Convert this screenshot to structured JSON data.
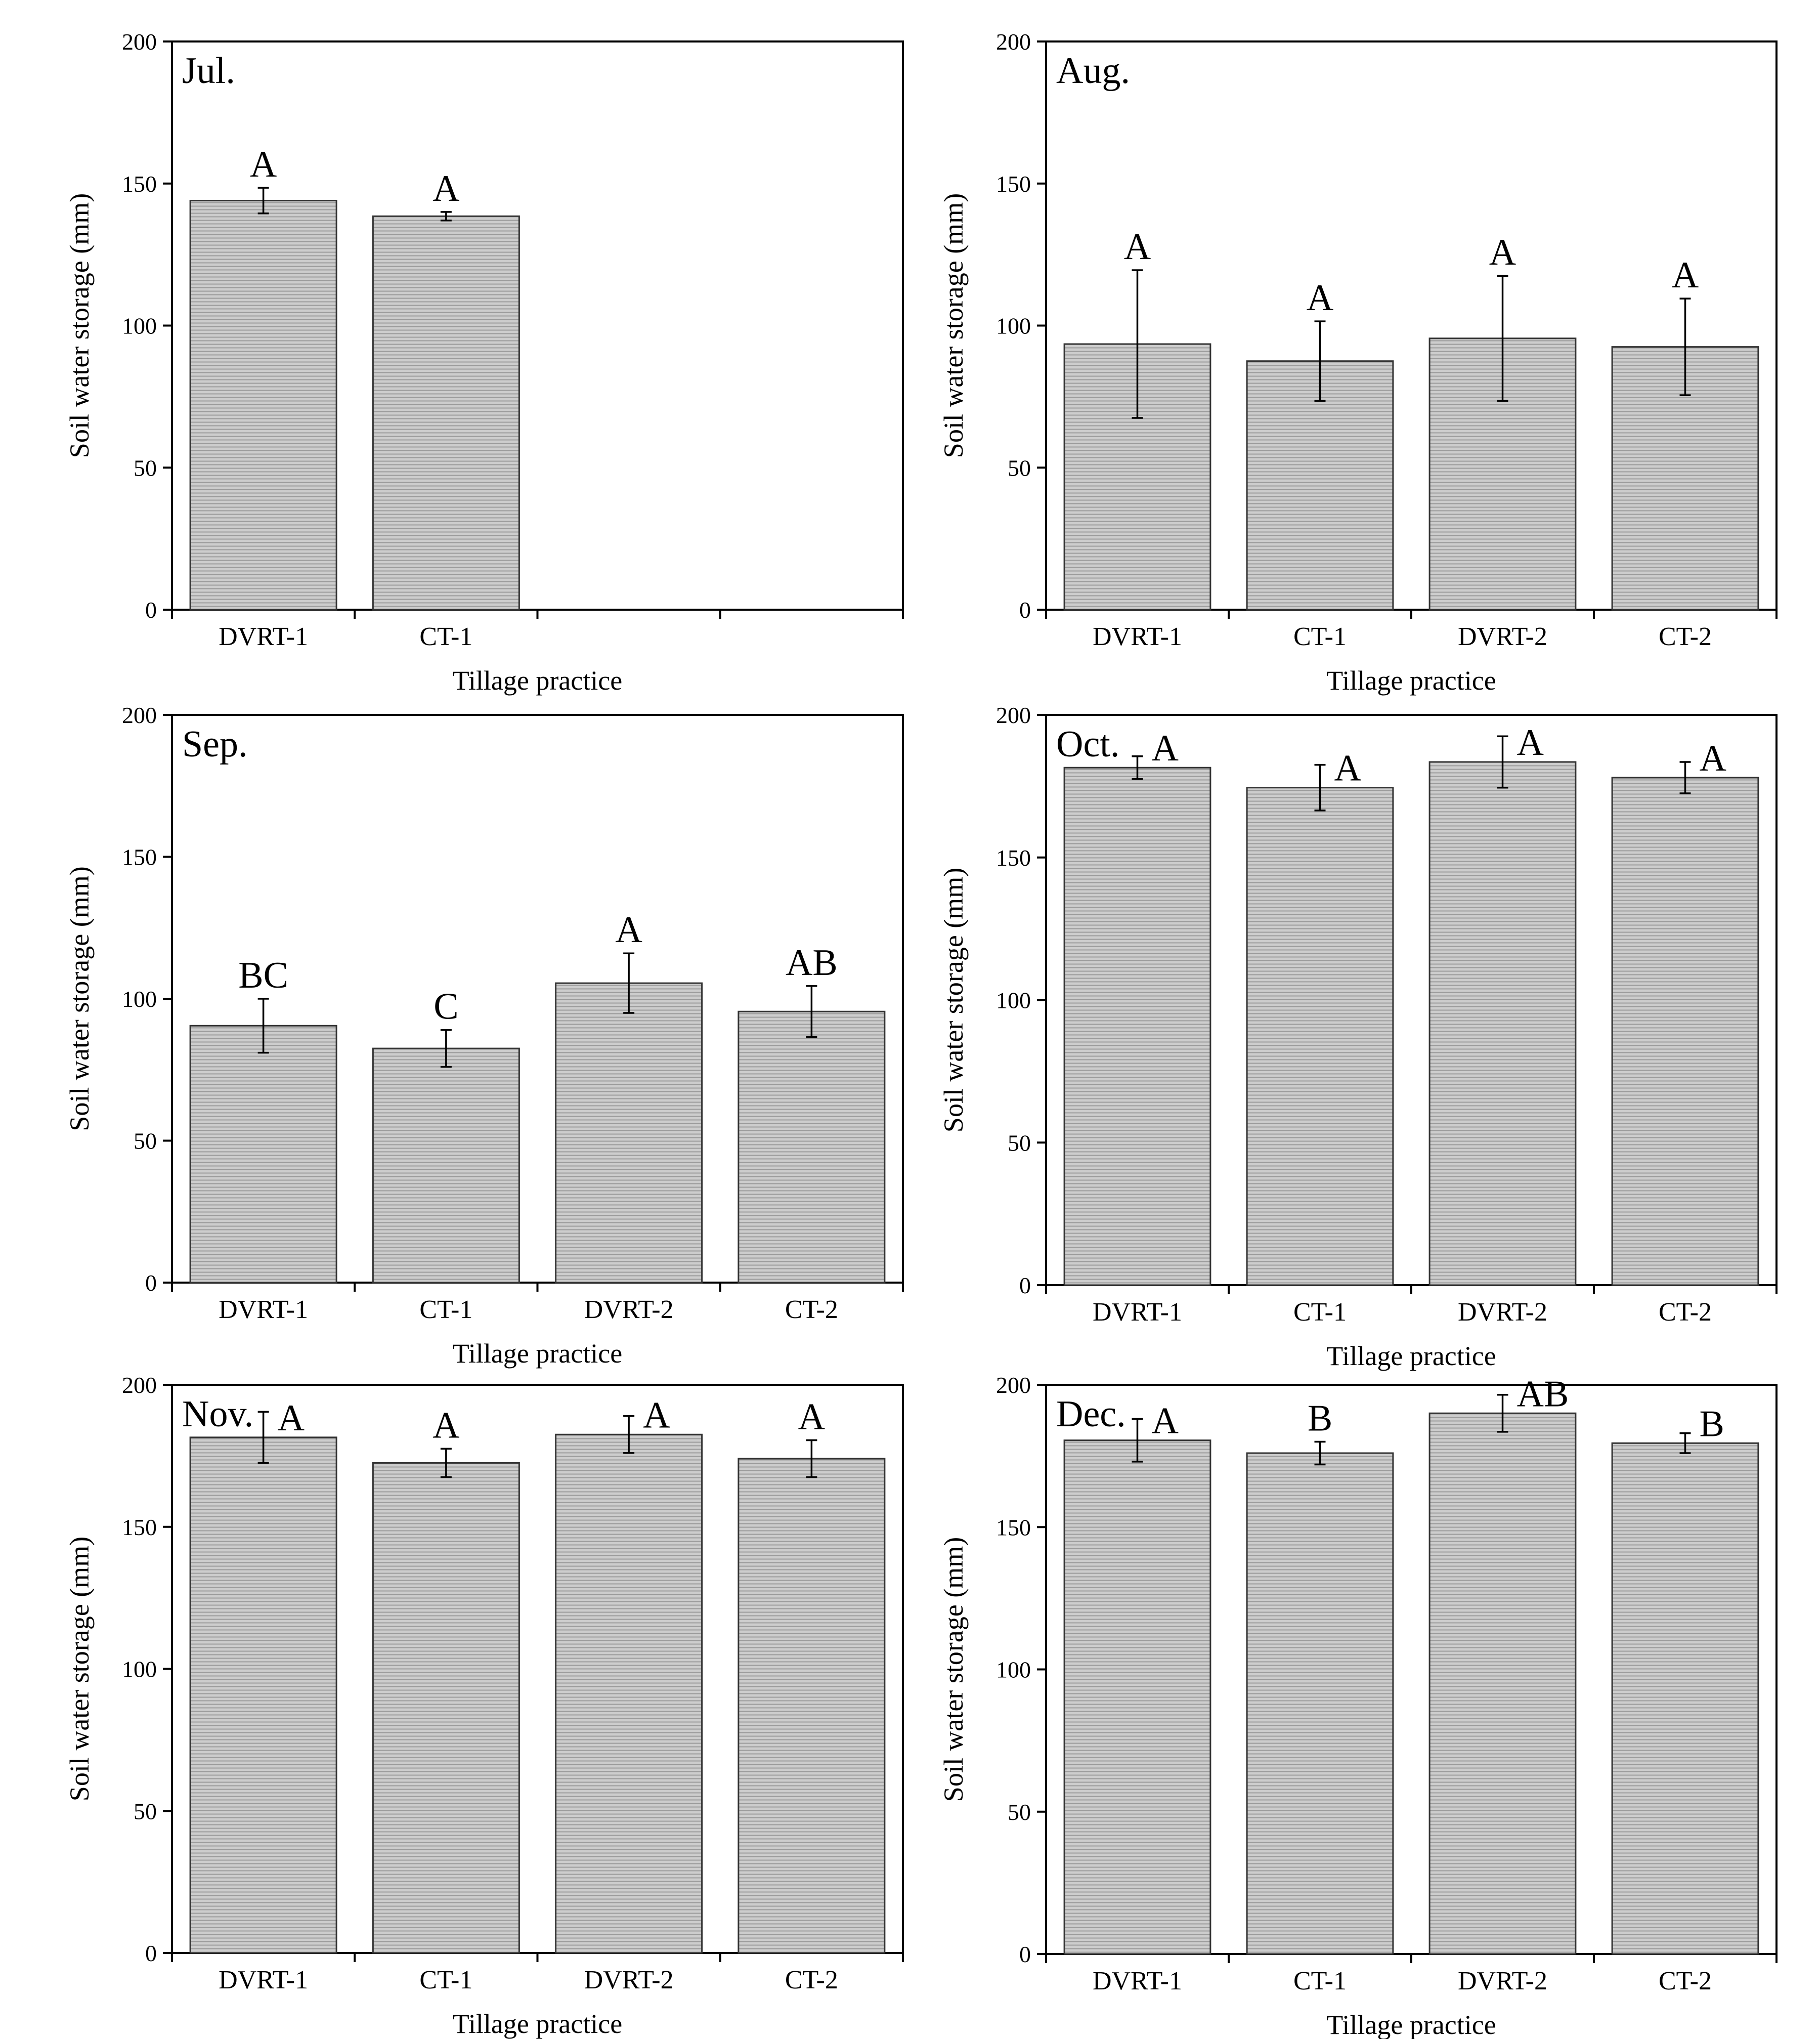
{
  "colors": {
    "bar_fill": "#c9c9c9",
    "bar_stripe": "#9a9a9a",
    "axis": "#000000"
  },
  "chart_data": [
    {
      "type": "bar",
      "title": "Jul.",
      "xlabel": "Tillage practice",
      "ylabel": "Soil water storage (mm)",
      "ylim": [
        0,
        200
      ],
      "yticks": [
        "0",
        "50",
        "100",
        "150",
        "200"
      ],
      "categories": [
        "DVRT-1",
        "CT-1"
      ],
      "values": [
        144,
        138.5
      ],
      "errors": [
        4.5,
        1.5
      ],
      "significance": [
        "A",
        "A"
      ]
    },
    {
      "type": "bar",
      "title": "Aug.",
      "xlabel": "Tillage practice",
      "ylabel": "Soil water storage (mm)",
      "ylim": [
        0,
        200
      ],
      "yticks": [
        "0",
        "50",
        "100",
        "150",
        "200"
      ],
      "categories": [
        "DVRT-1",
        "CT-1",
        "DVRT-2",
        "CT-2"
      ],
      "values": [
        93.5,
        87.5,
        95.5,
        92.5
      ],
      "errors": [
        26,
        14,
        22,
        17
      ],
      "significance": [
        "A",
        "A",
        "A",
        "A"
      ]
    },
    {
      "type": "bar",
      "title": "Sep.",
      "xlabel": "Tillage practice",
      "ylabel": "Soil water storage (mm)",
      "ylim": [
        0,
        200
      ],
      "yticks": [
        "0",
        "50",
        "100",
        "150",
        "200"
      ],
      "categories": [
        "DVRT-1",
        "CT-1",
        "DVRT-2",
        "CT-2"
      ],
      "values": [
        90.5,
        82.5,
        105.5,
        95.5
      ],
      "errors": [
        9.5,
        6.5,
        10.5,
        9
      ],
      "significance": [
        "BC",
        "C",
        "A",
        "AB"
      ]
    },
    {
      "type": "bar",
      "title": "Oct.",
      "xlabel": "Tillage practice",
      "ylabel": "Soil water storage (mm)",
      "ylim": [
        0,
        200
      ],
      "yticks": [
        "0",
        "50",
        "100",
        "150",
        "200"
      ],
      "categories": [
        "DVRT-1",
        "CT-1",
        "DVRT-2",
        "CT-2"
      ],
      "values": [
        181.5,
        174.5,
        183.5,
        178
      ],
      "errors": [
        4,
        8,
        9,
        5.5
      ],
      "significance": [
        "A",
        "A",
        "A",
        "A"
      ]
    },
    {
      "type": "bar",
      "title": "Nov.",
      "xlabel": "Tillage practice",
      "ylabel": "Soil water storage (mm)",
      "ylim": [
        0,
        200
      ],
      "yticks": [
        "0",
        "50",
        "100",
        "150",
        "200"
      ],
      "categories": [
        "DVRT-1",
        "CT-1",
        "DVRT-2",
        "CT-2"
      ],
      "values": [
        181.5,
        172.5,
        182.5,
        174
      ],
      "errors": [
        9,
        5,
        6.5,
        6.5
      ],
      "significance": [
        "A",
        "A",
        "A",
        "A"
      ]
    },
    {
      "type": "bar",
      "title": "Dec.",
      "xlabel": "Tillage practice",
      "ylabel": "Soil water storage (mm)",
      "ylim": [
        0,
        200
      ],
      "yticks": [
        "0",
        "50",
        "100",
        "150",
        "200"
      ],
      "categories": [
        "DVRT-1",
        "CT-1",
        "DVRT-2",
        "CT-2"
      ],
      "values": [
        180.5,
        176,
        190,
        179.5
      ],
      "errors": [
        7.5,
        4,
        6.5,
        3.5
      ],
      "significance": [
        "A",
        "B",
        "AB",
        "B"
      ]
    }
  ]
}
